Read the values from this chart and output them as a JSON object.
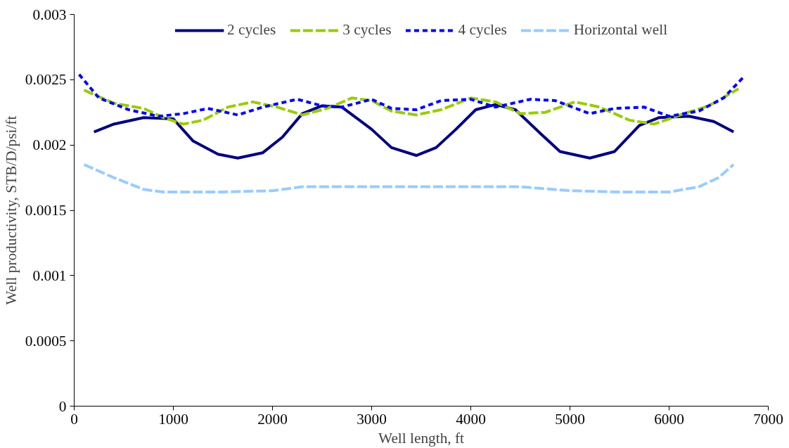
{
  "chart_data": {
    "type": "line",
    "xlabel": "Well length, ft",
    "ylabel": "Well productivity, STB/D/psi/ft",
    "xlim": [
      0,
      7000
    ],
    "xticks": [
      0,
      1000,
      2000,
      3000,
      4000,
      5000,
      6000,
      7000
    ],
    "ylim": [
      0,
      0.003
    ],
    "yticks": [
      0,
      0.0005,
      0.001,
      0.0015,
      0.002,
      0.0025,
      0.003
    ],
    "grid": false,
    "legend": "top",
    "marker": "none",
    "series": [
      {
        "name": "2 cycles",
        "color": "#000080",
        "line_style": "solid",
        "x": [
          200,
          400,
          700,
          1000,
          1200,
          1450,
          1650,
          1900,
          2100,
          2300,
          2500,
          2700,
          3000,
          3200,
          3450,
          3650,
          3850,
          4050,
          4250,
          4450,
          4700,
          4900,
          5200,
          5450,
          5700,
          5900,
          6200,
          6450,
          6650
        ],
        "values": [
          0.0021,
          0.00216,
          0.00221,
          0.0022,
          0.00203,
          0.00193,
          0.0019,
          0.00194,
          0.00206,
          0.00224,
          0.0023,
          0.00229,
          0.00212,
          0.00198,
          0.00192,
          0.00198,
          0.00212,
          0.00227,
          0.00231,
          0.00227,
          0.00209,
          0.00195,
          0.0019,
          0.00195,
          0.00215,
          0.00221,
          0.00222,
          0.00218,
          0.0021
        ]
      },
      {
        "name": "3 cycles",
        "color": "#99cc00",
        "line_style": "dashed",
        "x": [
          100,
          400,
          700,
          900,
          1100,
          1300,
          1550,
          1800,
          2050,
          2300,
          2550,
          2800,
          3000,
          3200,
          3450,
          3700,
          4000,
          4250,
          4500,
          4750,
          5050,
          5300,
          5600,
          5850,
          6150,
          6400,
          6700
        ],
        "values": [
          0.00242,
          0.00232,
          0.00228,
          0.00221,
          0.00216,
          0.00219,
          0.00229,
          0.00233,
          0.00229,
          0.00223,
          0.00228,
          0.00236,
          0.00234,
          0.00226,
          0.00223,
          0.00227,
          0.00236,
          0.00233,
          0.00224,
          0.00225,
          0.00233,
          0.00229,
          0.00219,
          0.00216,
          0.00224,
          0.0023,
          0.00243
        ]
      },
      {
        "name": "4 cycles",
        "color": "#0000ff",
        "line_style": "dotted",
        "x": [
          50,
          250,
          550,
          850,
          1100,
          1350,
          1650,
          1900,
          2250,
          2500,
          2700,
          3000,
          3200,
          3450,
          3700,
          4000,
          4250,
          4600,
          4850,
          5200,
          5450,
          5750,
          6000,
          6300,
          6550,
          6750
        ],
        "values": [
          0.00254,
          0.00236,
          0.00227,
          0.00222,
          0.00224,
          0.00228,
          0.00223,
          0.00229,
          0.00235,
          0.0023,
          0.00229,
          0.00235,
          0.00228,
          0.00227,
          0.00234,
          0.00235,
          0.00229,
          0.00235,
          0.00234,
          0.00224,
          0.00228,
          0.00229,
          0.00222,
          0.00226,
          0.00236,
          0.00252
        ]
      },
      {
        "name": "Horizontal well",
        "color": "#99ccff",
        "line_style": "dashed",
        "x": [
          100,
          400,
          700,
          900,
          1500,
          2000,
          2300,
          4500,
          5000,
          5500,
          6000,
          6300,
          6500,
          6650
        ],
        "values": [
          0.00185,
          0.00175,
          0.00166,
          0.00164,
          0.00164,
          0.00165,
          0.00168,
          0.00168,
          0.00165,
          0.00164,
          0.00164,
          0.00168,
          0.00175,
          0.00185
        ]
      }
    ]
  }
}
